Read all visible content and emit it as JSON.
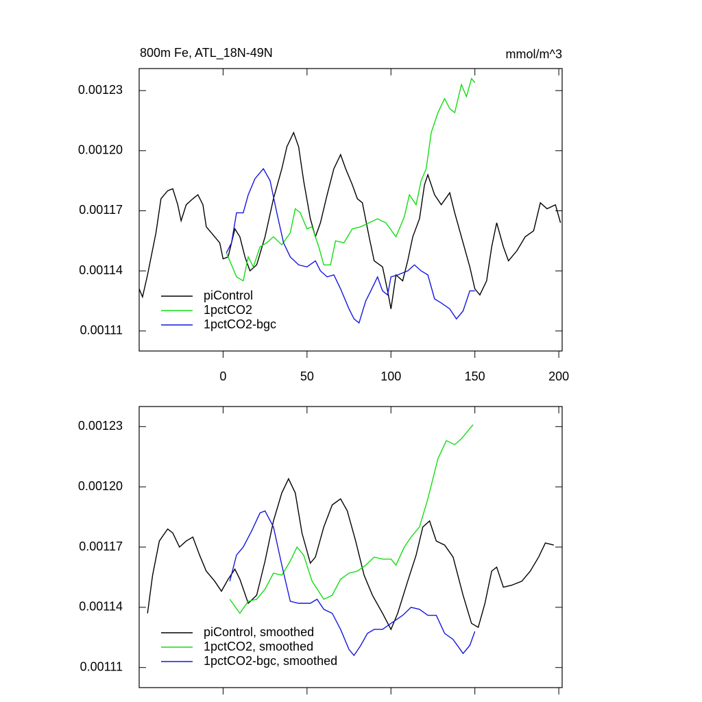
{
  "chart_data": [
    {
      "type": "line",
      "title": "800m Fe, ATL_18N-49N",
      "units": "mmol/m^3",
      "xlim": [
        -50,
        202
      ],
      "xticks": [
        0,
        50,
        100,
        150,
        200
      ],
      "ylim": [
        0.0011,
        0.001241
      ],
      "yticks": [
        0.00111,
        0.00114,
        0.00117,
        {
          "value": 0.0012,
          "label": "0.00120"
        },
        0.00123
      ],
      "legend": "lower left",
      "series": [
        {
          "name": "piControl",
          "color": "#000000",
          "x": [
            -50,
            -48,
            -45,
            -40,
            -37,
            -33,
            -30,
            -27,
            -25,
            -22,
            -18,
            -15,
            -12,
            -10,
            -5,
            -2,
            0,
            3,
            7,
            10,
            13,
            16,
            20,
            25,
            30,
            35,
            38,
            42,
            45,
            48,
            52,
            55,
            58,
            62,
            66,
            70,
            73,
            77,
            80,
            83,
            87,
            90,
            95,
            98,
            100,
            103,
            107,
            110,
            113,
            117,
            120,
            122,
            126,
            130,
            135,
            138,
            143,
            147,
            150,
            153,
            157,
            160,
            163,
            167,
            170,
            175,
            180,
            185,
            189,
            193,
            198,
            201
          ],
          "values": [
            0.001131,
            0.001127,
            0.001138,
            0.001159,
            0.001176,
            0.00118,
            0.001181,
            0.001173,
            0.001165,
            0.001173,
            0.001176,
            0.001178,
            0.001173,
            0.001162,
            0.001157,
            0.001154,
            0.001146,
            0.001147,
            0.001161,
            0.001157,
            0.001147,
            0.00114,
            0.001143,
            0.001157,
            0.001176,
            0.001191,
            0.001202,
            0.001209,
            0.001202,
            0.001185,
            0.001166,
            0.001157,
            0.001164,
            0.001178,
            0.001191,
            0.001198,
            0.001191,
            0.001183,
            0.001176,
            0.001174,
            0.001157,
            0.001145,
            0.001142,
            0.00113,
            0.001121,
            0.001138,
            0.001135,
            0.001145,
            0.001157,
            0.001166,
            0.001183,
            0.001188,
            0.001178,
            0.001173,
            0.001179,
            0.001169,
            0.001154,
            0.001142,
            0.001131,
            0.001128,
            0.001135,
            0.001152,
            0.001164,
            0.001152,
            0.001145,
            0.00115,
            0.001157,
            0.00116,
            0.001174,
            0.001171,
            0.001173,
            0.001164
          ]
        },
        {
          "name": "1pctCO2",
          "color": "#11dd11",
          "x": [
            2,
            5,
            8,
            12,
            15,
            18,
            22,
            26,
            30,
            35,
            40,
            43,
            46,
            50,
            53,
            57,
            60,
            64,
            67,
            72,
            77,
            82,
            87,
            92,
            97,
            103,
            108,
            111,
            115,
            118,
            121,
            124,
            128,
            132,
            135,
            138,
            142,
            145,
            148,
            150
          ],
          "values": [
            0.001149,
            0.001143,
            0.001137,
            0.001135,
            0.001147,
            0.001142,
            0.001152,
            0.001154,
            0.001157,
            0.001153,
            0.001159,
            0.001171,
            0.001169,
            0.001161,
            0.001162,
            0.001152,
            0.001143,
            0.001143,
            0.001155,
            0.001154,
            0.001161,
            0.001162,
            0.001164,
            0.001166,
            0.001164,
            0.001157,
            0.001167,
            0.001178,
            0.001173,
            0.001185,
            0.001191,
            0.001209,
            0.001219,
            0.001226,
            0.001221,
            0.001219,
            0.001233,
            0.001227,
            0.001236,
            0.001234
          ]
        },
        {
          "name": "1pctCO2-bgc",
          "color": "#1515dd",
          "x": [
            2,
            5,
            8,
            12,
            15,
            19,
            24,
            28,
            32,
            36,
            40,
            45,
            50,
            55,
            58,
            62,
            66,
            70,
            75,
            78,
            81,
            85,
            88,
            92,
            95,
            98,
            100,
            104,
            110,
            114,
            118,
            122,
            126,
            130,
            135,
            139,
            143,
            147,
            150
          ],
          "values": [
            0.001149,
            0.001154,
            0.001169,
            0.001169,
            0.001178,
            0.001186,
            0.001191,
            0.001185,
            0.001169,
            0.001154,
            0.001147,
            0.001143,
            0.001142,
            0.001145,
            0.00114,
            0.001137,
            0.001138,
            0.001131,
            0.001121,
            0.001116,
            0.001114,
            0.001125,
            0.00113,
            0.001137,
            0.00113,
            0.001128,
            0.001137,
            0.001138,
            0.00114,
            0.001143,
            0.00114,
            0.001138,
            0.001126,
            0.001124,
            0.001121,
            0.001116,
            0.00112,
            0.00113,
            0.00113
          ]
        }
      ]
    },
    {
      "type": "line",
      "xlim": [
        -50,
        202
      ],
      "xticks": [
        0,
        50,
        100,
        150,
        200
      ],
      "ylim": [
        0.0011,
        0.00124
      ],
      "yticks": [
        0.00111,
        0.00114,
        0.00117,
        {
          "value": 0.0012,
          "label": "0.00120"
        },
        0.00123
      ],
      "legend": "lower left",
      "series": [
        {
          "name": "piControl, smoothed",
          "color": "#000000",
          "x": [
            -45,
            -42,
            -38,
            -33,
            -30,
            -26,
            -22,
            -18,
            -14,
            -10,
            -5,
            -1,
            3,
            7,
            10,
            15,
            20,
            25,
            30,
            35,
            39,
            43,
            47,
            52,
            55,
            60,
            65,
            70,
            74,
            79,
            84,
            89,
            95,
            100,
            104,
            110,
            115,
            119,
            123,
            127,
            132,
            137,
            143,
            148,
            152,
            156,
            160,
            163,
            167,
            172,
            178,
            183,
            188,
            192,
            197
          ],
          "values": [
            0.001137,
            0.001156,
            0.001173,
            0.001179,
            0.001177,
            0.00117,
            0.001173,
            0.001175,
            0.001166,
            0.001158,
            0.001153,
            0.001148,
            0.001154,
            0.001159,
            0.001154,
            0.001142,
            0.001146,
            0.001163,
            0.001183,
            0.001197,
            0.001204,
            0.001197,
            0.001177,
            0.001162,
            0.001165,
            0.00118,
            0.001191,
            0.001194,
            0.001188,
            0.001173,
            0.001156,
            0.001146,
            0.001137,
            0.001129,
            0.001137,
            0.001153,
            0.001166,
            0.00118,
            0.001183,
            0.001173,
            0.001171,
            0.001165,
            0.001146,
            0.001132,
            0.00113,
            0.001142,
            0.001158,
            0.00116,
            0.00115,
            0.001151,
            0.001153,
            0.001158,
            0.001165,
            0.001172,
            0.001171
          ]
        },
        {
          "name": "1pctCO2, smoothed",
          "color": "#11dd11",
          "x": [
            4,
            10,
            15,
            20,
            25,
            30,
            35,
            40,
            44,
            48,
            53,
            60,
            65,
            70,
            75,
            80,
            85,
            90,
            95,
            100,
            103,
            108,
            112,
            117,
            122,
            128,
            133,
            138,
            142,
            147,
            149
          ],
          "values": [
            0.001144,
            0.001137,
            0.001143,
            0.001144,
            0.001149,
            0.001157,
            0.001156,
            0.001163,
            0.00117,
            0.001166,
            0.001153,
            0.001144,
            0.001146,
            0.001154,
            0.001157,
            0.001158,
            0.001161,
            0.001165,
            0.001164,
            0.001164,
            0.001161,
            0.00117,
            0.001175,
            0.00118,
            0.001194,
            0.001214,
            0.001223,
            0.001221,
            0.001224,
            0.001229,
            0.001231
          ]
        },
        {
          "name": "1pctCO2-bgc, smoothed",
          "color": "#1515dd",
          "x": [
            4,
            8,
            12,
            17,
            22,
            25,
            30,
            35,
            40,
            45,
            52,
            56,
            60,
            65,
            70,
            75,
            78,
            82,
            86,
            90,
            95,
            100,
            107,
            112,
            117,
            122,
            127,
            132,
            137,
            143,
            147,
            150
          ],
          "values": [
            0.001153,
            0.001166,
            0.00117,
            0.001178,
            0.001187,
            0.001188,
            0.00118,
            0.001161,
            0.001143,
            0.001142,
            0.001142,
            0.001144,
            0.001139,
            0.001137,
            0.001129,
            0.001119,
            0.001116,
            0.001121,
            0.001127,
            0.001129,
            0.001129,
            0.001132,
            0.001136,
            0.00114,
            0.001139,
            0.001136,
            0.001136,
            0.001127,
            0.001124,
            0.001117,
            0.001121,
            0.001128
          ]
        }
      ]
    }
  ]
}
